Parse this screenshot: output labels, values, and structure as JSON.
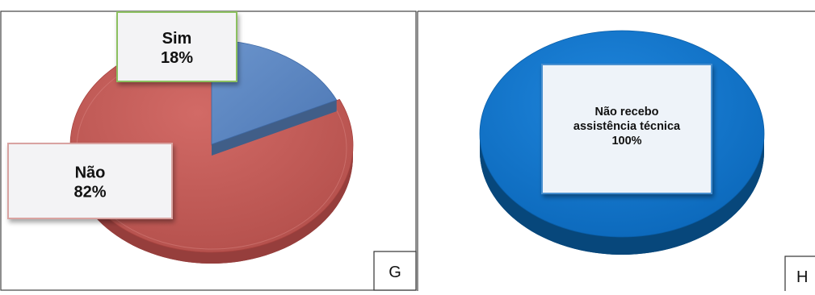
{
  "chart_data": [
    {
      "type": "pie",
      "panel_letter": "G",
      "categories": [
        "Sim",
        "Não"
      ],
      "values": [
        18,
        82
      ],
      "labels": [
        "18%",
        "82%"
      ],
      "colors": [
        "#5b86c2",
        "#c0504d"
      ],
      "label_box_border_colors": [
        "#8cc060",
        "#d9a3a1"
      ]
    },
    {
      "type": "pie",
      "panel_letter": "H",
      "categories": [
        "Não recebo assistência técnica"
      ],
      "category_lines": [
        "Não recebo",
        "assistência técnica"
      ],
      "values": [
        100
      ],
      "labels": [
        "100%"
      ],
      "colors": [
        "#0b72c7"
      ],
      "label_box_border_colors": [
        "#4a90d0"
      ]
    }
  ]
}
